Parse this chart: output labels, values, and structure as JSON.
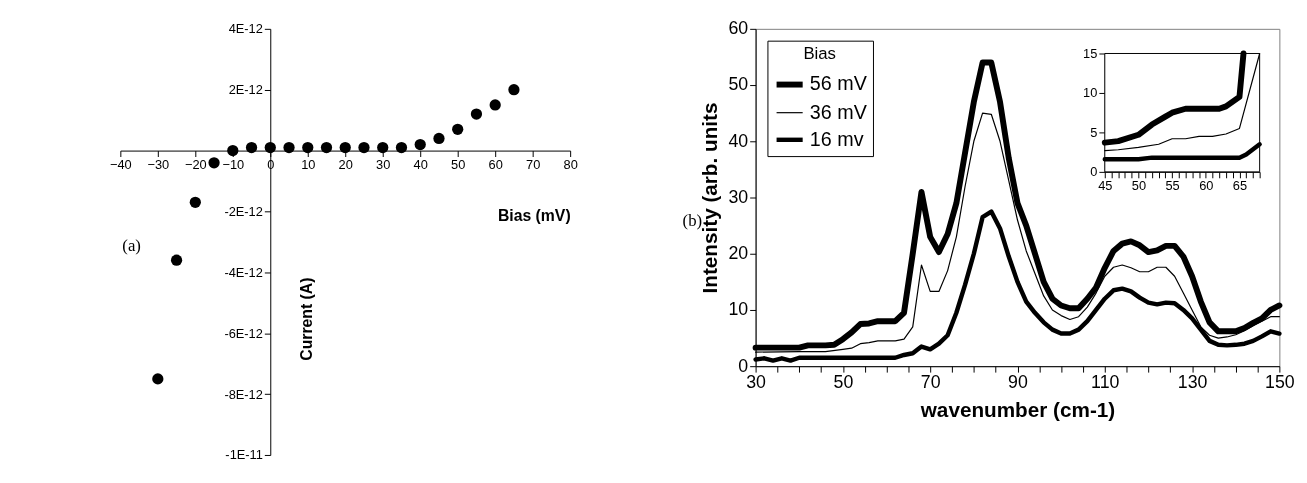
{
  "chart_data": [
    {
      "type": "scatter",
      "xlabel": "Bias (mV)",
      "ylabel": "Current (A)",
      "annotations": [
        "(a)"
      ],
      "marker": "circle",
      "color": "#000000",
      "x": [
        -30,
        -25,
        -20,
        -15,
        -10,
        -5,
        0,
        5,
        10,
        15,
        20,
        25,
        30,
        35,
        40,
        45,
        50,
        55,
        60,
        65
      ],
      "values": [
        -7.5e-12,
        -3.6e-12,
        -1.7e-12,
        -4e-13,
        0,
        1e-13,
        1e-13,
        1e-13,
        1e-13,
        1e-13,
        1e-13,
        1e-13,
        1e-13,
        1e-13,
        2e-13,
        4e-13,
        7e-13,
        1.2e-12,
        1.5e-12,
        2e-12
      ],
      "xlim": [
        -40,
        80
      ],
      "xticks": [
        -40,
        -30,
        -20,
        -10,
        0,
        10,
        20,
        30,
        40,
        50,
        60,
        70,
        80
      ],
      "ylim": [
        -1e-11,
        4e-12
      ],
      "yticks": [
        {
          "value": 4e-12,
          "label": "4E-12"
        },
        {
          "value": 2e-12,
          "label": "2E-12"
        },
        {
          "value": -2e-12,
          "label": "-2E-12"
        },
        {
          "value": -4e-12,
          "label": "-4E-12"
        },
        {
          "value": -6e-12,
          "label": "-6E-12"
        },
        {
          "value": -8e-12,
          "label": "-8E-12"
        },
        {
          "value": -1e-11,
          "label": "-1E-11"
        }
      ]
    },
    {
      "type": "line",
      "xlabel": "wavenumber (cm-1)",
      "ylabel": "Intensity (arb. units",
      "legend_title": "Bias",
      "legend": "top left",
      "annotations": [
        "(b)"
      ],
      "series": [
        {
          "name": "56 mV",
          "color": "#000000",
          "x": [
            30,
            40,
            42,
            46,
            48,
            50,
            52,
            54,
            56,
            58,
            62,
            64,
            66,
            68,
            70,
            72,
            74,
            76,
            78,
            80,
            82,
            84,
            86,
            88,
            90,
            92,
            94,
            96,
            98,
            100,
            102,
            104,
            106,
            108,
            110,
            112,
            114,
            116,
            118,
            120,
            122,
            124,
            126,
            128,
            130,
            132,
            134,
            136,
            138,
            140,
            142,
            144,
            146,
            148,
            150
          ],
          "values": [
            3.3,
            3.3,
            3.7,
            3.7,
            3.8,
            4.8,
            6,
            7.5,
            7.6,
            8,
            8,
            9.5,
            20,
            31,
            23,
            20.3,
            23.5,
            29,
            38,
            47,
            54,
            54,
            47,
            37,
            29,
            25,
            20,
            15,
            12,
            10.8,
            10.3,
            10.3,
            12,
            14,
            17.5,
            20.5,
            21.8,
            22.2,
            21.5,
            20.3,
            20.6,
            21.4,
            21.4,
            19.5,
            16,
            11.5,
            7.8,
            6.2,
            6.2,
            6.2,
            6.8,
            7.7,
            8.5,
            10,
            10.8
          ]
        },
        {
          "name": "36 mV",
          "color": "#000000",
          "x": [
            30,
            40,
            46,
            50,
            52,
            54,
            56,
            58,
            62,
            64,
            66,
            68,
            70,
            72,
            74,
            76,
            78,
            80,
            82,
            84,
            86,
            88,
            90,
            92,
            94,
            96,
            98,
            100,
            102,
            104,
            106,
            108,
            110,
            112,
            114,
            116,
            118,
            120,
            122,
            124,
            126,
            128,
            130,
            132,
            134,
            136,
            138,
            140,
            142,
            144,
            146,
            148,
            150
          ],
          "values": [
            2.5,
            2.6,
            2.6,
            3,
            3.2,
            4,
            4.2,
            4.5,
            4.5,
            4.8,
            7,
            18,
            13.3,
            13.3,
            17,
            23,
            32,
            40,
            45,
            44.8,
            40,
            33,
            26,
            20.5,
            16.5,
            12.5,
            10,
            9,
            8.3,
            8.8,
            10.5,
            13,
            16,
            17.6,
            18,
            17.5,
            16.8,
            16.8,
            17.6,
            17.6,
            16,
            13,
            10,
            7,
            5.5,
            5,
            5.2,
            5.6,
            6.3,
            7.2,
            8,
            8.8,
            8.8
          ]
        },
        {
          "name": "16 mv",
          "color": "#000000",
          "x": [
            30,
            32,
            34,
            36,
            38,
            40,
            44,
            62,
            64,
            66,
            68,
            70,
            72,
            74,
            76,
            78,
            80,
            82,
            84,
            86,
            88,
            90,
            92,
            94,
            96,
            98,
            100,
            102,
            104,
            106,
            108,
            110,
            112,
            114,
            116,
            118,
            120,
            122,
            124,
            126,
            128,
            130,
            132,
            134,
            136,
            138,
            140,
            142,
            144,
            146,
            148,
            150
          ],
          "values": [
            1.2,
            1.4,
            1.0,
            1.4,
            1.0,
            1.5,
            1.5,
            1.5,
            2,
            2.3,
            3.5,
            3,
            4,
            5.5,
            9.5,
            14.5,
            20,
            26.5,
            27.5,
            24.5,
            19.5,
            15,
            11.5,
            9.5,
            7.8,
            6.5,
            5.8,
            5.8,
            6.5,
            8,
            10,
            12,
            13.5,
            13.8,
            13.3,
            12.2,
            11.3,
            11,
            11.3,
            11.2,
            10,
            8.5,
            6.5,
            4.5,
            3.8,
            3.7,
            3.8,
            4,
            4.5,
            5.3,
            6.2,
            5.8
          ]
        }
      ],
      "xlim": [
        30,
        150
      ],
      "xticks": [
        30,
        {
          "value": 35,
          "label": null
        },
        {
          "value": 40,
          "label": null
        },
        {
          "value": 45,
          "label": null
        },
        50,
        {
          "value": 55,
          "label": null
        },
        {
          "value": 60,
          "label": null
        },
        {
          "value": 65,
          "label": null
        },
        70,
        {
          "value": 75,
          "label": null
        },
        {
          "value": 80,
          "label": null
        },
        {
          "value": 85,
          "label": null
        },
        90,
        {
          "value": 95,
          "label": null
        },
        {
          "value": 100,
          "label": null
        },
        {
          "value": 105,
          "label": null
        },
        110,
        {
          "value": 115,
          "label": null
        },
        {
          "value": 120,
          "label": null
        },
        {
          "value": 125,
          "label": null
        },
        130,
        {
          "value": 135,
          "label": null
        },
        {
          "value": 140,
          "label": null
        },
        {
          "value": 145,
          "label": null
        },
        150
      ],
      "ylim": [
        0,
        60
      ],
      "yticks": [
        0,
        10,
        20,
        30,
        40,
        50,
        60
      ]
    },
    {
      "type": "line",
      "series": [
        {
          "color": "#000000",
          "x": [
            45,
            47,
            50,
            52,
            54,
            55,
            57,
            62,
            63,
            65,
            65.6
          ],
          "values": [
            3.7,
            3.9,
            4.7,
            6,
            7,
            7.5,
            8,
            8,
            8.3,
            9.5,
            15
          ]
        },
        {
          "color": "#000000",
          "x": [
            45,
            47,
            50,
            53,
            55,
            57,
            59,
            61,
            63,
            65,
            68
          ],
          "values": [
            2.7,
            2.8,
            3.1,
            3.5,
            4.2,
            4.2,
            4.5,
            4.5,
            4.8,
            5.5,
            15
          ]
        },
        {
          "color": "#000000",
          "x": [
            45,
            50,
            52,
            65,
            66,
            68
          ],
          "values": [
            1.6,
            1.6,
            1.8,
            1.8,
            2.2,
            3.5
          ]
        }
      ],
      "xlim": [
        45,
        68
      ],
      "xticks": [
        45,
        {
          "value": 46,
          "label": null
        },
        {
          "value": 47,
          "label": null
        },
        {
          "value": 48,
          "label": null
        },
        {
          "value": 49,
          "label": null
        },
        50,
        {
          "value": 51,
          "label": null
        },
        {
          "value": 52,
          "label": null
        },
        {
          "value": 53,
          "label": null
        },
        {
          "value": 54,
          "label": null
        },
        55,
        {
          "value": 56,
          "label": null
        },
        {
          "value": 57,
          "label": null
        },
        {
          "value": 58,
          "label": null
        },
        {
          "value": 59,
          "label": null
        },
        60,
        {
          "value": 61,
          "label": null
        },
        {
          "value": 62,
          "label": null
        },
        {
          "value": 63,
          "label": null
        },
        {
          "value": 64,
          "label": null
        },
        65,
        {
          "value": 66,
          "label": null
        },
        {
          "value": 67,
          "label": null
        },
        {
          "value": 68,
          "label": null
        }
      ],
      "ylim": [
        0,
        15
      ],
      "yticks": [
        0,
        5,
        10,
        15
      ]
    }
  ]
}
